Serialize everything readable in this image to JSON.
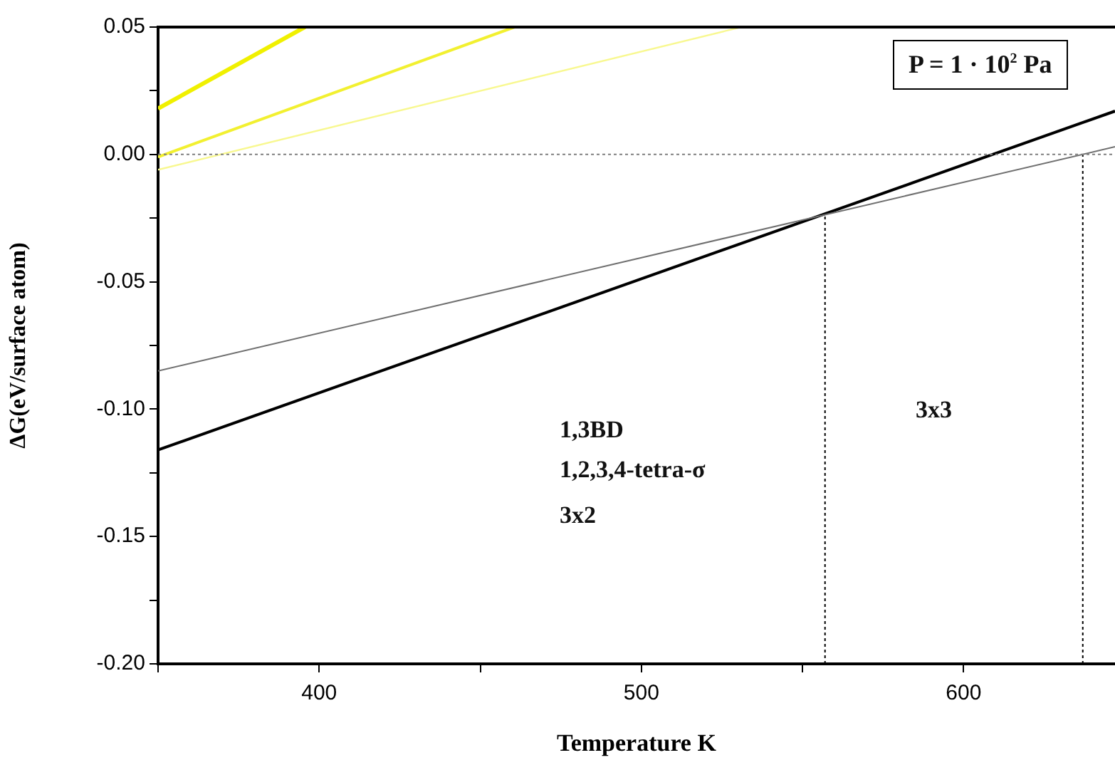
{
  "chart_data": {
    "type": "line",
    "xlabel": "Temperature K",
    "ylabel": "ΔG(eV/surface atom)",
    "xlim": [
      350,
      647
    ],
    "ylim": [
      -0.2,
      0.05
    ],
    "xticks": [
      {
        "value": 350,
        "label": null
      },
      400,
      {
        "value": 450,
        "label": null
      },
      500,
      {
        "value": 550,
        "label": null
      },
      600
    ],
    "yticks": [
      {
        "value": -0.2,
        "label": "-0.20"
      },
      {
        "value": -0.175,
        "label": null
      },
      {
        "value": -0.15,
        "label": "-0.15"
      },
      {
        "value": -0.125,
        "label": null
      },
      {
        "value": -0.1,
        "label": "-0.10"
      },
      {
        "value": -0.075,
        "label": null
      },
      {
        "value": -0.05,
        "label": "-0.05"
      },
      {
        "value": -0.025,
        "label": null
      },
      {
        "value": 0,
        "label": "0.00"
      },
      {
        "value": 0.025,
        "label": null
      },
      {
        "value": 0.05,
        "label": "0.05"
      }
    ],
    "grid": false,
    "legend": false,
    "marker": "none",
    "series": [
      {
        "color": "#f0f000",
        "x": [
          350,
          395.6
        ],
        "values": [
          0.018,
          0.05
        ]
      },
      {
        "color": "#f2f030",
        "x": [
          350,
          460.6
        ],
        "values": [
          -0.001,
          0.05
        ]
      },
      {
        "color": "#f8f890",
        "x": [
          350,
          531
        ],
        "values": [
          -0.006,
          0.05
        ]
      },
      {
        "color": "#707070",
        "x": [
          350,
          647
        ],
        "values": [
          -0.085,
          0.003
        ]
      },
      {
        "color": "#000000",
        "x": [
          350,
          647
        ],
        "values": [
          -0.116,
          0.017
        ]
      },
      {
        "color": "#000000",
        "line_style": "dotted",
        "x": [
          557,
          557
        ],
        "values": [
          -0.2,
          -0.024
        ]
      },
      {
        "color": "#000000",
        "line_style": "dotted",
        "x": [
          637,
          637
        ],
        "values": [
          -0.2,
          0
        ]
      }
    ],
    "ref_lines": [
      {
        "axis": "y",
        "value": 0,
        "color": "#808080",
        "line_style": "dotted"
      }
    ],
    "annotations": [
      "P = 1 · 10$^{2}$ Pa",
      "1,3BD",
      "1,2,3,4-tetra-σ",
      "3x2",
      "3x3"
    ]
  }
}
